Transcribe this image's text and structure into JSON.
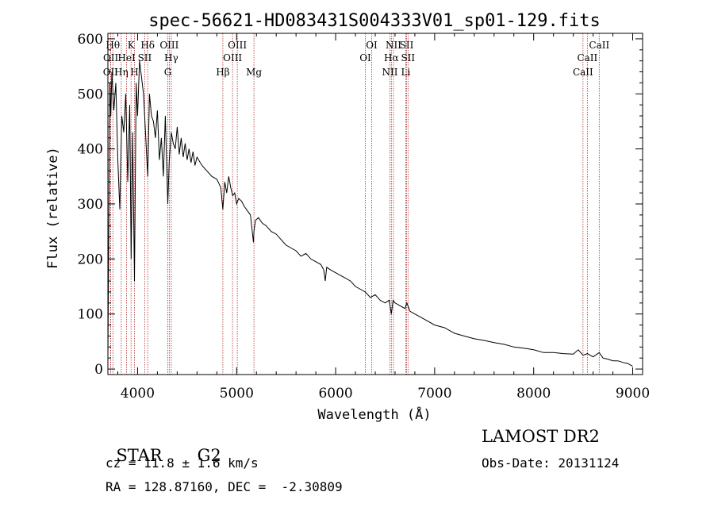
{
  "info": {
    "object_class": "STAR",
    "subclass": "G2",
    "survey": "LAMOST DR2",
    "redshift_line": "cz = 11.8 ± 1.6 km/s",
    "obs_date_line": "Obs-Date: 20131124",
    "coords_line": "RA = 128.87160, DEC =  -2.30809"
  },
  "chart_data": {
    "type": "line",
    "title": "spec-56621-HD083431S004333V01_sp01-129.fits",
    "xlabel": "Wavelength (Å)",
    "ylabel": "Flux (relative)",
    "xlim": [
      3700,
      9100
    ],
    "ylim": [
      -10,
      610
    ],
    "x_ticks": [
      4000,
      5000,
      6000,
      7000,
      8000,
      9000
    ],
    "y_ticks": [
      0,
      100,
      200,
      300,
      400,
      500,
      600
    ],
    "grid": false,
    "line_color": "#000000",
    "marker_color": "#b03030",
    "spectral_lines": [
      {
        "label": "OII",
        "wavelength": 3727,
        "row": 2
      },
      {
        "label": "Hθ",
        "wavelength": 3750,
        "row": 0
      },
      {
        "label": "OII",
        "wavelength": 3729,
        "row": 1
      },
      {
        "label": "Hη",
        "wavelength": 3835,
        "row": 2
      },
      {
        "label": "HeI",
        "wavelength": 3889,
        "row": 1
      },
      {
        "label": "K",
        "wavelength": 3934,
        "row": 0
      },
      {
        "label": "H",
        "wavelength": 3968,
        "row": 2
      },
      {
        "label": "SII",
        "wavelength": 4072,
        "row": 1
      },
      {
        "label": "Hδ",
        "wavelength": 4102,
        "row": 0
      },
      {
        "label": "OIII",
        "wavelength": 4320,
        "row": 0
      },
      {
        "label": "Hγ",
        "wavelength": 4340,
        "row": 1
      },
      {
        "label": "G",
        "wavelength": 4305,
        "row": 2
      },
      {
        "label": "Hβ",
        "wavelength": 4861,
        "row": 2
      },
      {
        "label": "OIII",
        "wavelength": 5007,
        "row": 0
      },
      {
        "label": "OIII",
        "wavelength": 4959,
        "row": 1
      },
      {
        "label": "Mg",
        "wavelength": 5175,
        "row": 2
      },
      {
        "label": "OI",
        "wavelength": 6364,
        "row": 0
      },
      {
        "label": "OI",
        "wavelength": 6300,
        "row": 1
      },
      {
        "label": "NII",
        "wavelength": 6584,
        "row": 0
      },
      {
        "label": "Hα",
        "wavelength": 6563,
        "row": 1
      },
      {
        "label": "NII",
        "wavelength": 6548,
        "row": 2
      },
      {
        "label": "SII",
        "wavelength": 6717,
        "row": 0
      },
      {
        "label": "SII",
        "wavelength": 6731,
        "row": 1
      },
      {
        "label": "Li",
        "wavelength": 6708,
        "row": 2
      },
      {
        "label": "CaII",
        "wavelength": 8662,
        "row": 0
      },
      {
        "label": "CaII",
        "wavelength": 8542,
        "row": 1
      },
      {
        "label": "CaII",
        "wavelength": 8498,
        "row": 2
      }
    ],
    "series": [
      {
        "x": [
          3700,
          3720,
          3730,
          3740,
          3760,
          3780,
          3800,
          3820,
          3840,
          3860,
          3880,
          3900,
          3920,
          3935,
          3950,
          3968,
          3985,
          4000,
          4020,
          4040,
          4060,
          4080,
          4102,
          4120,
          4140,
          4160,
          4180,
          4200,
          4220,
          4240,
          4260,
          4280,
          4305,
          4320,
          4340,
          4360,
          4380,
          4400,
          4420,
          4440,
          4460,
          4480,
          4500,
          4520,
          4540,
          4560,
          4580,
          4600,
          4650,
          4700,
          4750,
          4800,
          4840,
          4861,
          4880,
          4900,
          4920,
          4940,
          4960,
          4980,
          5000,
          5020,
          5050,
          5080,
          5100,
          5140,
          5170,
          5175,
          5190,
          5220,
          5260,
          5300,
          5350,
          5400,
          5450,
          5500,
          5550,
          5600,
          5650,
          5700,
          5750,
          5800,
          5850,
          5880,
          5895,
          5910,
          5950,
          6000,
          6050,
          6100,
          6150,
          6200,
          6250,
          6300,
          6350,
          6400,
          6450,
          6500,
          6540,
          6563,
          6580,
          6600,
          6650,
          6700,
          6720,
          6750,
          6800,
          6900,
          7000,
          7100,
          7200,
          7300,
          7400,
          7500,
          7600,
          7700,
          7800,
          7900,
          8000,
          8100,
          8200,
          8300,
          8400,
          8450,
          8498,
          8542,
          8600,
          8662,
          8700,
          8750,
          8800,
          8850,
          8900,
          8950,
          9000
        ],
        "y": [
          20,
          520,
          460,
          540,
          470,
          520,
          380,
          290,
          460,
          430,
          500,
          340,
          480,
          200,
          430,
          160,
          520,
          460,
          560,
          530,
          500,
          430,
          350,
          500,
          460,
          450,
          420,
          470,
          380,
          420,
          350,
          460,
          300,
          380,
          430,
          410,
          400,
          440,
          390,
          420,
          385,
          410,
          380,
          400,
          375,
          395,
          370,
          385,
          370,
          360,
          350,
          345,
          330,
          290,
          340,
          320,
          350,
          330,
          315,
          320,
          300,
          310,
          305,
          295,
          290,
          280,
          230,
          250,
          270,
          275,
          265,
          260,
          250,
          245,
          235,
          225,
          220,
          215,
          205,
          210,
          200,
          195,
          190,
          180,
          160,
          185,
          180,
          175,
          170,
          165,
          160,
          150,
          145,
          140,
          130,
          135,
          125,
          120,
          125,
          100,
          125,
          120,
          115,
          110,
          120,
          105,
          100,
          90,
          80,
          75,
          65,
          60,
          55,
          52,
          48,
          45,
          40,
          38,
          35,
          30,
          30,
          28,
          27,
          35,
          25,
          28,
          22,
          30,
          20,
          18,
          15,
          15,
          12,
          10,
          5
        ]
      }
    ]
  }
}
